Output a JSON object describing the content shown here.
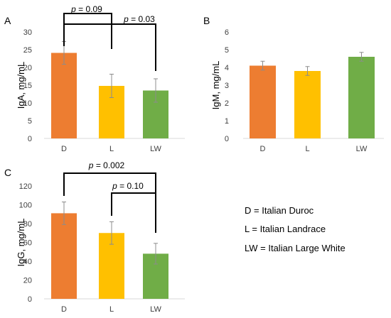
{
  "chart_data": [
    {
      "panel": "A",
      "type": "bar",
      "categories": [
        "D",
        "L",
        "LW"
      ],
      "values": [
        24.1,
        14.8,
        13.5
      ],
      "errors": [
        3.2,
        3.3,
        3.3
      ],
      "colors": [
        "#ED7D31",
        "#FFC000",
        "#70AD47"
      ],
      "ylabel": "IgA, mg/mL",
      "ylim": [
        0,
        30
      ],
      "yticks": [
        "0",
        "5",
        "10",
        "15",
        "20",
        "25",
        "30"
      ],
      "comparisons": [
        {
          "from": 0,
          "to": 1,
          "label": "p = 0.09"
        },
        {
          "from": 0,
          "to": 2,
          "label": "p = 0.03"
        }
      ]
    },
    {
      "panel": "B",
      "type": "bar",
      "categories": [
        "D",
        "L",
        "LW"
      ],
      "values": [
        4.1,
        3.8,
        4.6
      ],
      "errors": [
        0.25,
        0.25,
        0.25
      ],
      "colors": [
        "#ED7D31",
        "#FFC000",
        "#70AD47"
      ],
      "ylabel": "IgM, mg/mL",
      "ylim": [
        0,
        6
      ],
      "yticks": [
        "0",
        "1",
        "2",
        "3",
        "4",
        "5",
        "6"
      ],
      "comparisons": []
    },
    {
      "panel": "C",
      "type": "bar",
      "categories": [
        "D",
        "L",
        "LW"
      ],
      "values": [
        91,
        70,
        48
      ],
      "errors": [
        12,
        12,
        11
      ],
      "colors": [
        "#ED7D31",
        "#FFC000",
        "#70AD47"
      ],
      "ylabel": "IgG, mg/mL",
      "ylim": [
        0,
        120
      ],
      "yticks": [
        "0",
        "20",
        "40",
        "60",
        "80",
        "100",
        "120"
      ],
      "comparisons": [
        {
          "from": 0,
          "to": 2,
          "label": "p = 0.002"
        },
        {
          "from": 1,
          "to": 2,
          "label": "p = 0.10"
        }
      ]
    }
  ],
  "legend": [
    "D = Italian Duroc",
    "L = Italian Landrace",
    "LW = Italian Large White"
  ]
}
